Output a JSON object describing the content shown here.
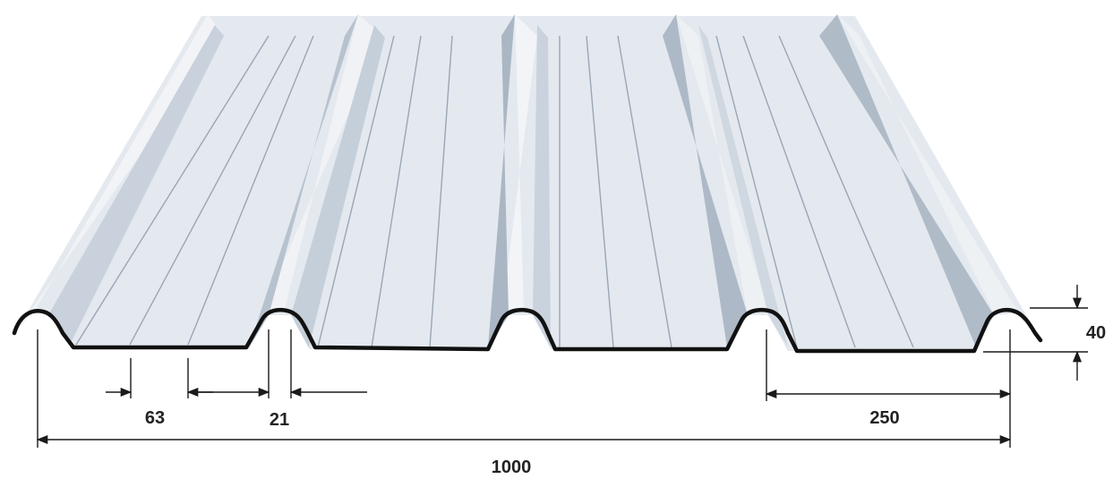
{
  "dimensions": {
    "trough_width": "63",
    "rib_top": "21",
    "rib_pitch": "250",
    "total_width": "1000",
    "height": "40"
  },
  "colors": {
    "sheet_light": "#e7ebf0",
    "sheet_mid": "#d3dae3",
    "sheet_dark": "#b9c3cf",
    "edge": "#111111",
    "dimension_line": "#1a1a1a"
  }
}
